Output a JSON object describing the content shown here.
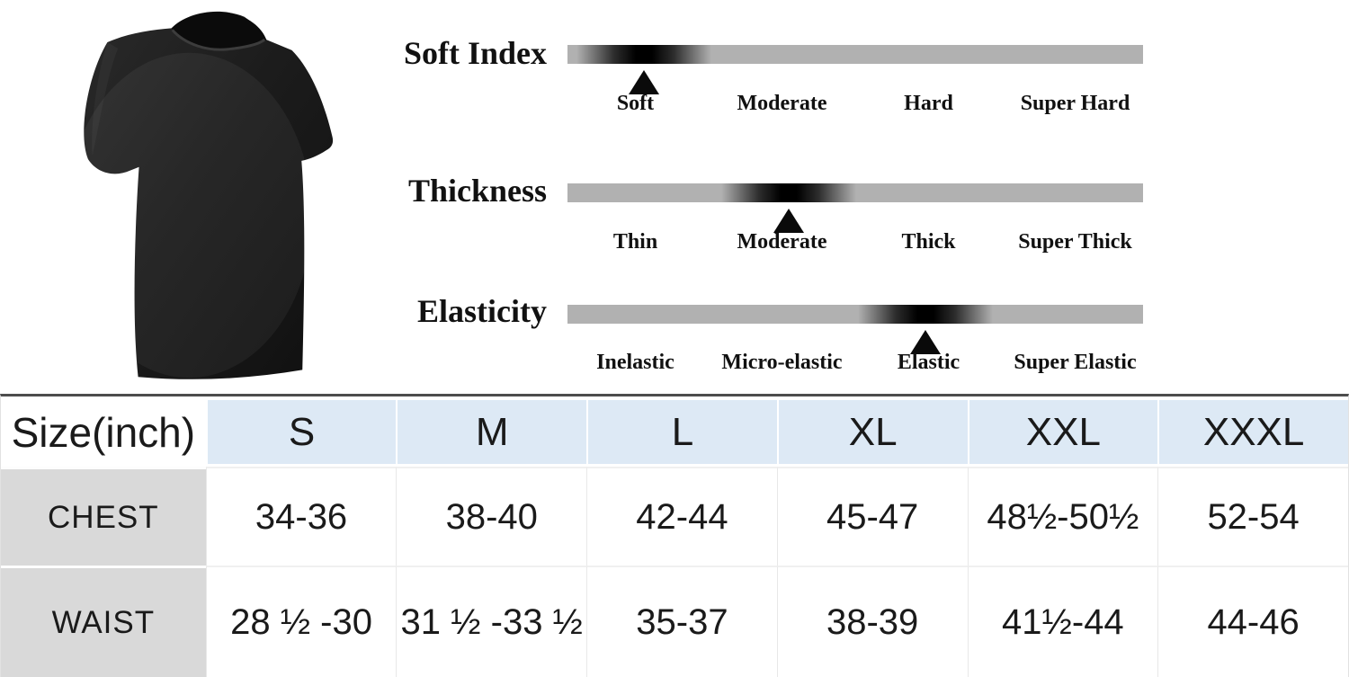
{
  "product_image": {
    "description": "black short-sleeve crew-neck t-shirt, three-quarter view",
    "shirt_color": "#1b1b1b"
  },
  "attribute_scales": {
    "bar_color": "#b1b1b1",
    "marker_color": "#000000",
    "scales": [
      {
        "name": "Soft Index",
        "labels": [
          "Soft",
          "Moderate",
          "Hard",
          "Super Hard"
        ],
        "selected": "Soft",
        "marker_pos_pct": 13.3
      },
      {
        "name": "Thickness",
        "labels": [
          "Thin",
          "Moderate",
          "Thick",
          "Super Thick"
        ],
        "selected": "Moderate",
        "marker_pos_pct": 38.5
      },
      {
        "name": "Elasticity",
        "labels": [
          "Inelastic",
          "Micro-elastic",
          "Elastic",
          "Super Elastic"
        ],
        "selected": "Elastic",
        "marker_pos_pct": 62.2
      }
    ]
  },
  "size_table": {
    "header_bg": "#dde9f5",
    "label_bg": "#d9d9d9",
    "top_border_color": "#4d4d4d",
    "columns": [
      "Size(inch)",
      "S",
      "M",
      "L",
      "XL",
      "XXL",
      "XXXL"
    ],
    "rows": [
      {
        "label": "CHEST",
        "values": [
          "34-36",
          "38-40",
          "42-44",
          "45-47",
          "48½-50½",
          "52-54"
        ]
      },
      {
        "label": "WAIST",
        "values": [
          "28 ½ -30",
          "31 ½ -33 ½",
          "35-37",
          "38-39",
          "41½-44",
          "44-46"
        ]
      }
    ]
  }
}
